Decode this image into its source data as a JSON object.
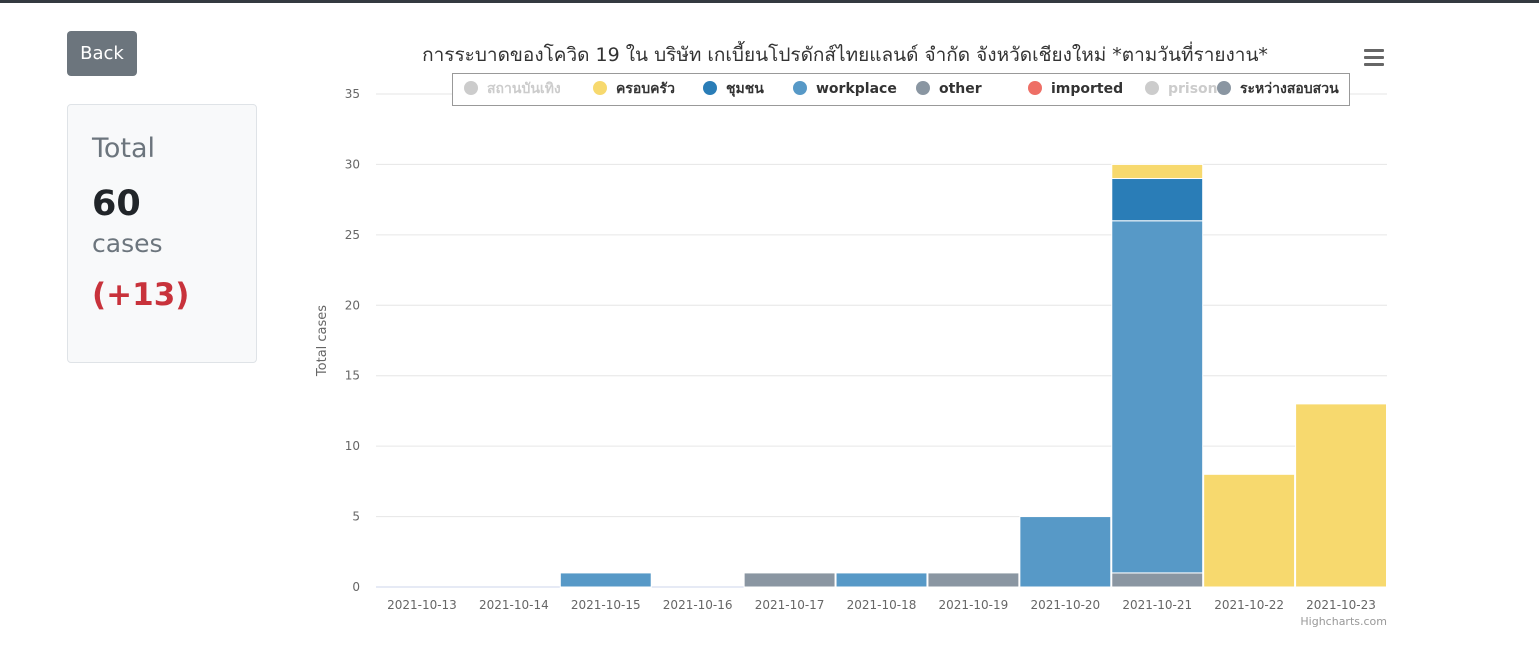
{
  "back_label": "Back",
  "summary": {
    "total_label": "Total",
    "total_value": "60",
    "cases_label": "cases",
    "delta": "(+13)"
  },
  "chart_data": {
    "type": "bar",
    "stacked": true,
    "title": "การระบาดของโควิด 19 ใน บริษัท เกเบี้ยนโปรดักส์ไทยแลนด์ จำกัด จังหวัดเชียงใหม่ *ตามวันที่รายงาน*",
    "xlabel": "",
    "ylabel": "Total cases",
    "ylim": [
      0,
      35
    ],
    "yticks": [
      0,
      5,
      10,
      15,
      20,
      25,
      30,
      35
    ],
    "grid": true,
    "legend_position": "top",
    "credits": "Highcharts.com",
    "categories": [
      "2021-10-13",
      "2021-10-14",
      "2021-10-15",
      "2021-10-16",
      "2021-10-17",
      "2021-10-18",
      "2021-10-19",
      "2021-10-20",
      "2021-10-21",
      "2021-10-22",
      "2021-10-23"
    ],
    "series": [
      {
        "name": "สถานบันเทิง",
        "color": "#cccccc",
        "visible": false,
        "values": [
          0,
          0,
          0,
          0,
          0,
          0,
          0,
          0,
          0,
          0,
          0
        ]
      },
      {
        "name": "ครอบครัว",
        "color": "#f7d96e",
        "visible": true,
        "values": [
          0,
          0,
          0,
          0,
          0,
          0,
          0,
          0,
          1,
          8,
          13
        ]
      },
      {
        "name": "ชุมชน",
        "color": "#2a7db7",
        "visible": true,
        "values": [
          0,
          0,
          0,
          0,
          0,
          0,
          0,
          0,
          3,
          0,
          0
        ]
      },
      {
        "name": "workplace",
        "color": "#5799c7",
        "visible": true,
        "values": [
          0,
          0,
          1,
          0,
          0,
          1,
          0,
          5,
          25,
          0,
          0
        ]
      },
      {
        "name": "other",
        "color": "#8a96a2",
        "visible": true,
        "values": [
          0,
          0,
          0,
          0,
          1,
          0,
          1,
          0,
          0,
          0,
          0
        ]
      },
      {
        "name": "imported",
        "color": "#ee6f66",
        "visible": true,
        "values": [
          0,
          0,
          0,
          0,
          0,
          0,
          0,
          0,
          0,
          0,
          0
        ]
      },
      {
        "name": "prison",
        "color": "#cccccc",
        "visible": false,
        "values": [
          0,
          0,
          0,
          0,
          0,
          0,
          0,
          0,
          0,
          0,
          0
        ]
      },
      {
        "name": "ระหว่างสอบสวน",
        "color": "#8a96a2",
        "visible": true,
        "values": [
          0,
          0,
          0,
          0,
          0,
          0,
          0,
          0,
          1,
          0,
          0
        ]
      }
    ]
  }
}
